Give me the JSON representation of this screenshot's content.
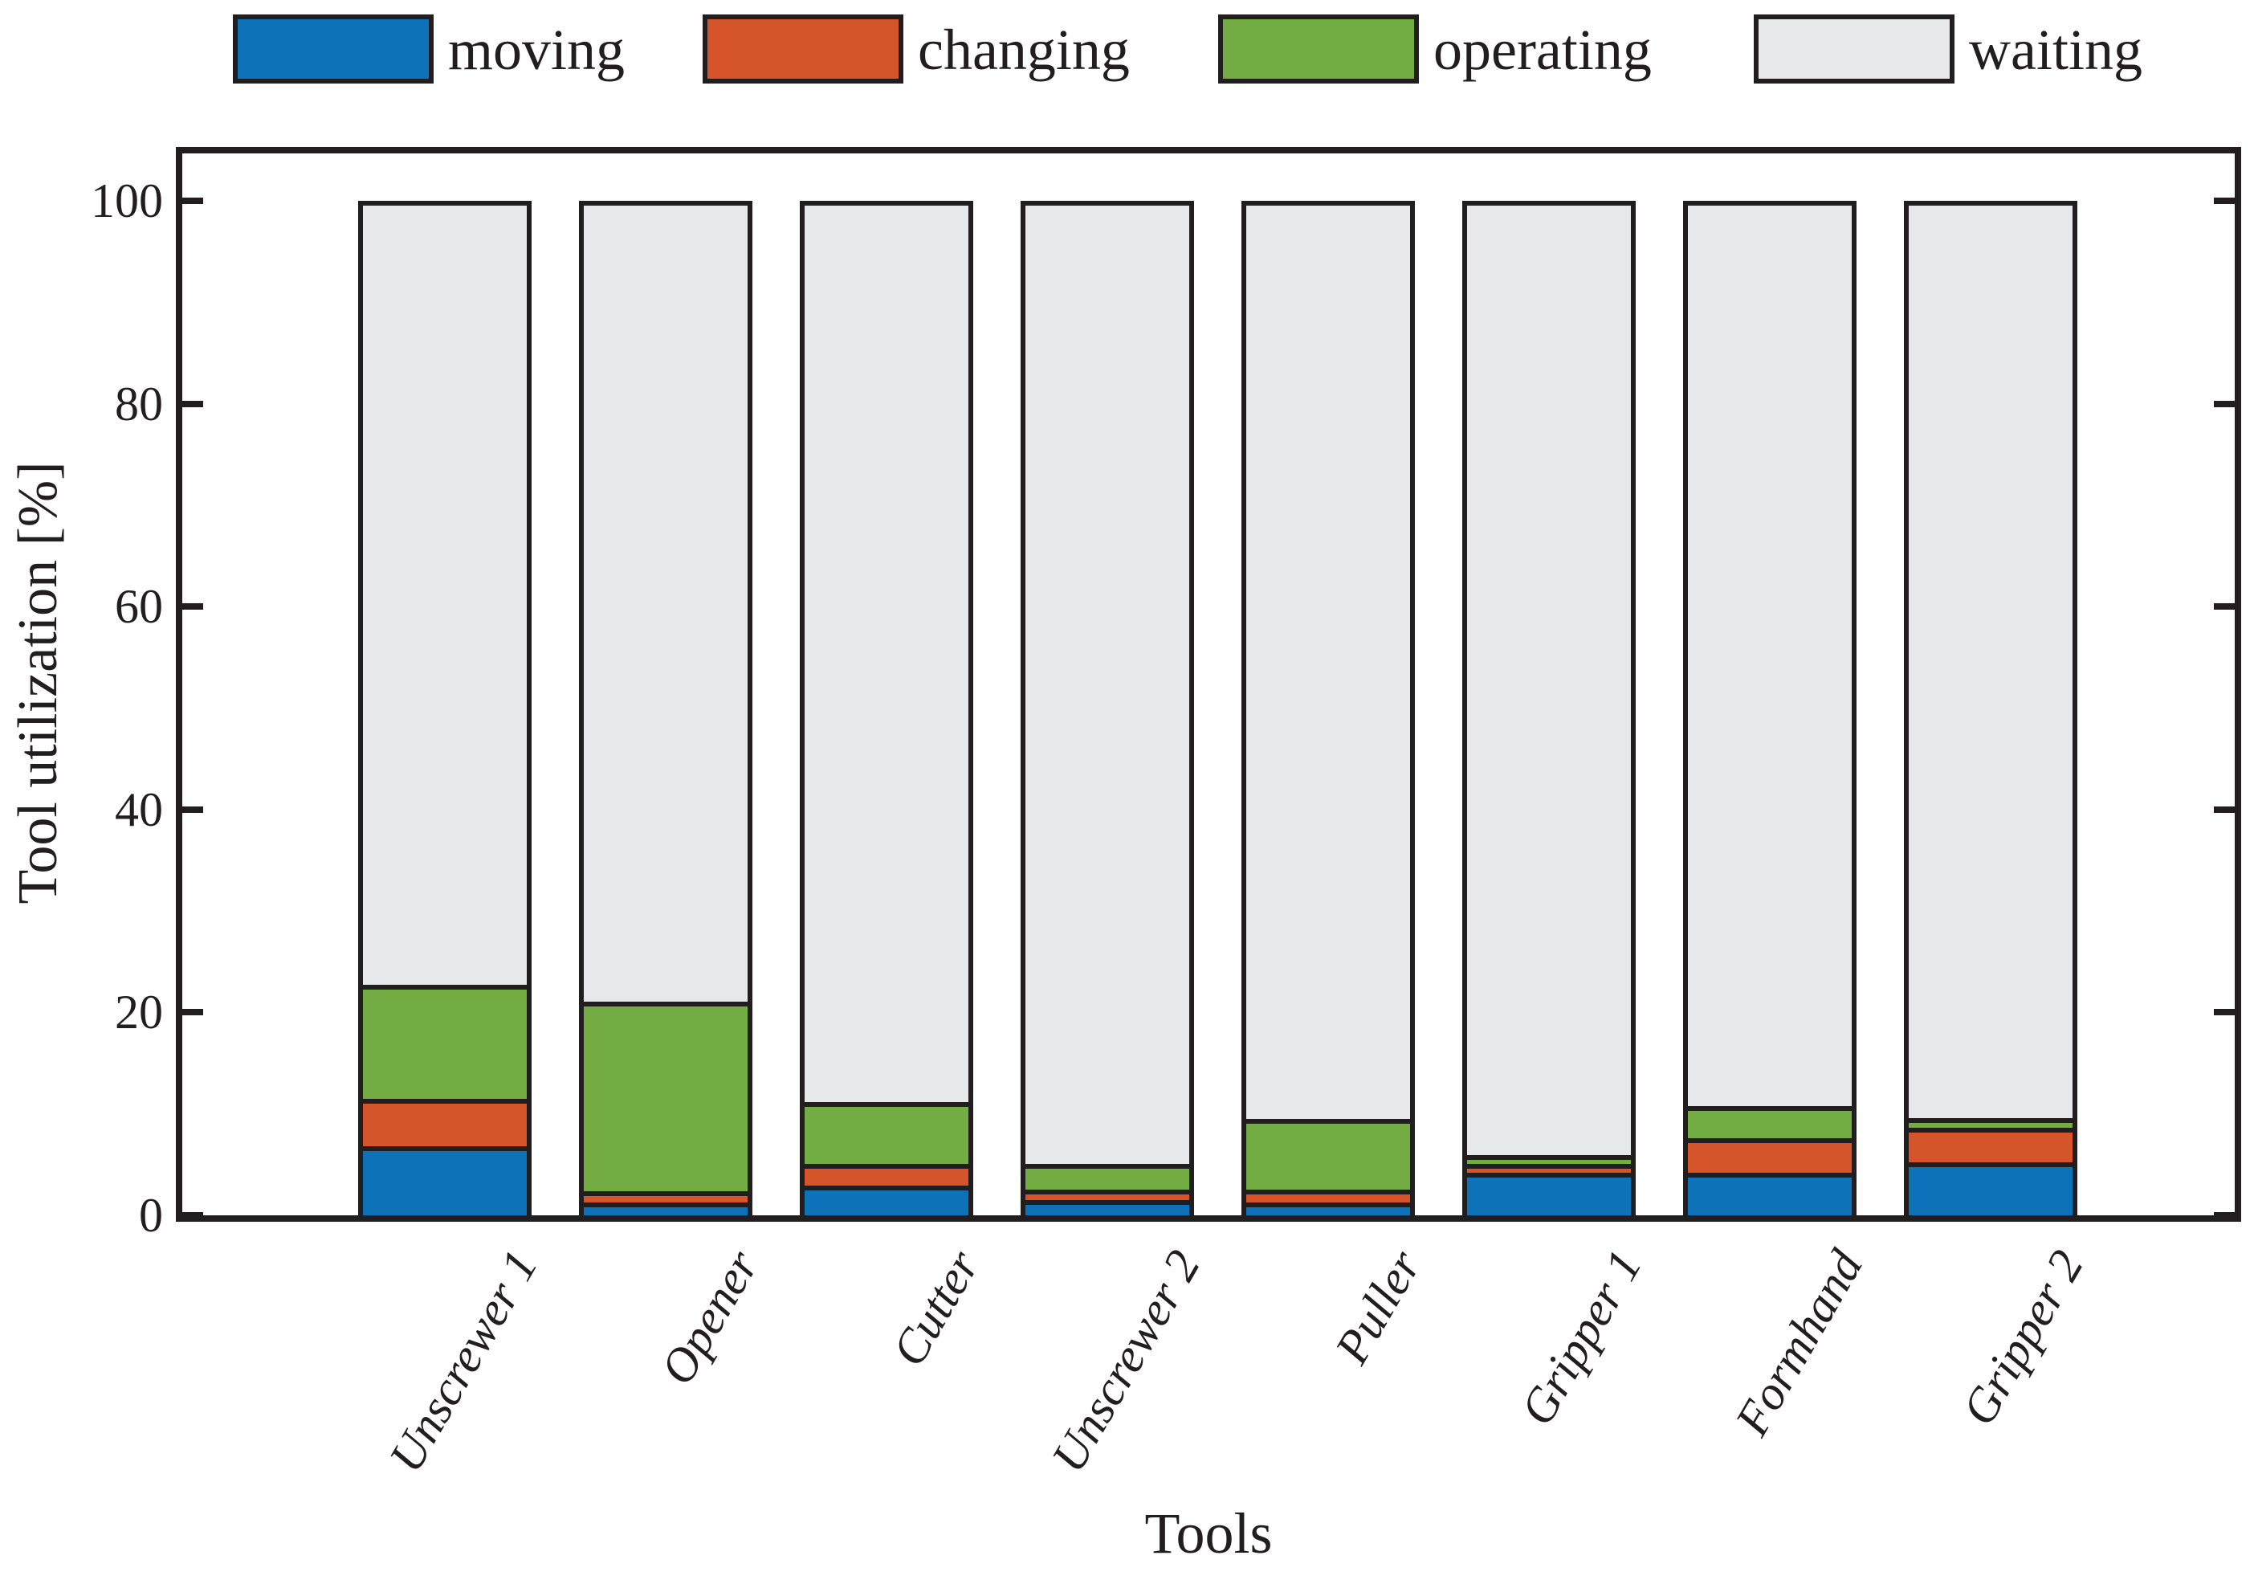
{
  "chart_data": {
    "type": "bar",
    "stacked": true,
    "title": "",
    "xlabel": "Tools",
    "ylabel": "Tool utilization [%]",
    "categories": [
      "Unscrewer 1",
      "Opener",
      "Cutter",
      "Unscrewer 2",
      "Puller",
      "Gripper 1",
      "Formhand",
      "Gripper 2"
    ],
    "series": [
      {
        "name": "moving",
        "color": "#0d72b7",
        "values": [
          6.8,
          1.3,
          2.9,
          1.5,
          1.3,
          4.2,
          4.2,
          5.2
        ]
      },
      {
        "name": "changing",
        "color": "#d5542a",
        "values": [
          4.7,
          1.1,
          2.2,
          1.0,
          1.2,
          0.9,
          3.4,
          3.4
        ]
      },
      {
        "name": "operating",
        "color": "#73ac43",
        "values": [
          11.2,
          18.7,
          6.1,
          2.6,
          7.0,
          0.8,
          3.2,
          1.0
        ]
      },
      {
        "name": "waiting",
        "color": "#e7e8ea",
        "values": [
          77.3,
          78.9,
          88.8,
          94.9,
          90.5,
          94.1,
          89.2,
          90.4
        ]
      }
    ],
    "ylim": [
      0,
      105
    ],
    "yticks": [
      0,
      20,
      40,
      60,
      80,
      100
    ],
    "legend_position": "top",
    "grid": false,
    "axis_color": "#221e20",
    "bar_border_color": "#221e20"
  }
}
